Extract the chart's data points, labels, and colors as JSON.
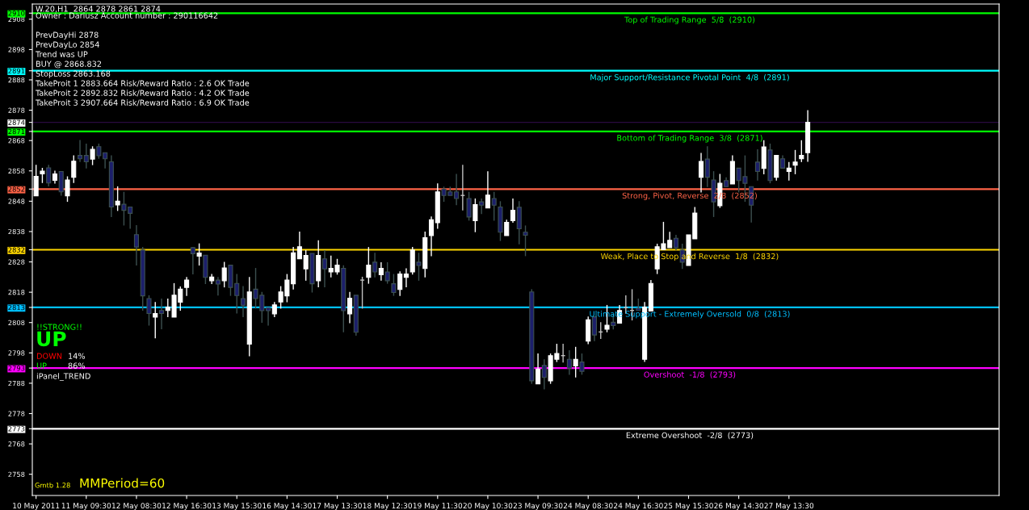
{
  "chart_data": {
    "type": "candlestick",
    "title": "W.20,H1  2864 2878 2861 2874",
    "categories": [
      "10 May 2011",
      null,
      null,
      null,
      null,
      null,
      null,
      null,
      "11 May 09:30",
      null,
      null,
      null,
      null,
      null,
      null,
      null,
      "12 May 08:30",
      null,
      null,
      null,
      null,
      null,
      null,
      null,
      "12 May 16:30",
      null,
      null,
      null,
      null,
      null,
      null,
      null,
      "13 May 15:30",
      null,
      null,
      null,
      null,
      null,
      null,
      null,
      "16 May 14:30",
      null,
      null,
      null,
      null,
      null,
      null,
      null,
      "17 May 13:30",
      null,
      null,
      null,
      null,
      null,
      null,
      null,
      "18 May 12:30",
      null,
      null,
      null,
      null,
      null,
      null,
      null,
      "19 May 11:30",
      null,
      null,
      null,
      null,
      null,
      null,
      null,
      "20 May 10:30",
      null,
      null,
      null,
      null,
      null,
      null,
      null,
      "23 May 09:30",
      null,
      null,
      null,
      null,
      null,
      null,
      null,
      "24 May 08:30",
      null,
      null,
      null,
      null,
      null,
      null,
      null,
      "24 May 16:30",
      null,
      null,
      null,
      null,
      null,
      null,
      null,
      "25 May 15:30",
      null,
      null,
      null,
      null,
      null,
      null,
      null,
      "26 May 14:30",
      null,
      null,
      null,
      null,
      null,
      null,
      null,
      "27 May 13:30",
      null,
      null,
      null
    ],
    "ohlc": [
      [
        2849.8,
        2860.0,
        2849.8,
        2856.2
      ],
      [
        2857.0,
        2859.0,
        2854.0,
        2857.9
      ],
      [
        2859.0,
        2860.0,
        2852.9,
        2854.0
      ],
      [
        2854.9,
        2858.1,
        2853.8,
        2857.0
      ],
      [
        2857.8,
        2857.8,
        2849.8,
        2851.1
      ],
      [
        2849.8,
        2856.2,
        2847.8,
        2855.0
      ],
      [
        2855.9,
        2863.1,
        2854.0,
        2861.2
      ],
      [
        2863.1,
        2868.2,
        2860.9,
        2862.0
      ],
      [
        2863.1,
        2867.0,
        2858.8,
        2861.0
      ],
      [
        2861.9,
        2866.1,
        2859.9,
        2865.1
      ],
      [
        2866.0,
        2867.0,
        2862.0,
        2863.0
      ],
      [
        2864.0,
        2864.0,
        2858.8,
        2862.0
      ],
      [
        2861.0,
        2863.1,
        2842.8,
        2846.1
      ],
      [
        2846.8,
        2852.9,
        2844.8,
        2848.0
      ],
      [
        2847.0,
        2851.1,
        2840.0,
        2845.0
      ],
      [
        2846.1,
        2846.1,
        2838.9,
        2844.0
      ],
      [
        2837.0,
        2840.1,
        2826.8,
        2832.9
      ],
      [
        2831.9,
        2832.9,
        2811.9,
        2816.8
      ],
      [
        2815.9,
        2817.0,
        2807.0,
        2811.0
      ],
      [
        2809.8,
        2814.8,
        2802.8,
        2811.0
      ],
      [
        2812.0,
        2815.9,
        2805.8,
        2811.0
      ],
      [
        2812.0,
        2815.9,
        2809.8,
        2813.1
      ],
      [
        2809.8,
        2821.0,
        2809.8,
        2817.0
      ],
      [
        2814.7,
        2819.9,
        2811.9,
        2819.0
      ],
      [
        2819.6,
        2823.0,
        2816.8,
        2822.0
      ],
      [
        2832.7,
        2832.9,
        2823.9,
        2830.7
      ],
      [
        2829.9,
        2834.1,
        2826.8,
        2830.9
      ],
      [
        2830.2,
        2830.2,
        2820.7,
        2822.9
      ],
      [
        2821.8,
        2824.0,
        2820.7,
        2823.0
      ],
      [
        2822.0,
        2823.0,
        2816.9,
        2820.7
      ],
      [
        2821.8,
        2828.0,
        2819.6,
        2826.0
      ],
      [
        2826.9,
        2826.9,
        2816.8,
        2819.6
      ],
      [
        2820.9,
        2824.0,
        2811.0,
        2816.9
      ],
      [
        2815.9,
        2820.0,
        2809.8,
        2813.7
      ],
      [
        2800.9,
        2823.0,
        2796.9,
        2818.1
      ],
      [
        2819.0,
        2826.0,
        2812.6,
        2815.9
      ],
      [
        2817.0,
        2818.1,
        2807.9,
        2811.9
      ],
      [
        2812.9,
        2812.9,
        2807.0,
        2811.9
      ],
      [
        2810.9,
        2814.8,
        2809.8,
        2813.8
      ],
      [
        2814.8,
        2820.0,
        2812.6,
        2818.1
      ],
      [
        2816.8,
        2824.0,
        2814.7,
        2822.0
      ],
      [
        2820.8,
        2832.9,
        2818.9,
        2831.0
      ],
      [
        2829.0,
        2838.0,
        2829.0,
        2833.0
      ],
      [
        2825.7,
        2831.9,
        2821.8,
        2830.1
      ],
      [
        2830.8,
        2830.8,
        2817.9,
        2820.8
      ],
      [
        2821.8,
        2835.1,
        2819.6,
        2830.1
      ],
      [
        2829.0,
        2831.9,
        2819.6,
        2825.7
      ],
      [
        2824.7,
        2830.1,
        2822.9,
        2825.9
      ],
      [
        2824.7,
        2829.0,
        2823.8,
        2826.9
      ],
      [
        2825.9,
        2826.9,
        2804.8,
        2811.9
      ],
      [
        2810.9,
        2818.1,
        2807.8,
        2816.0
      ],
      [
        2817.0,
        2817.0,
        2803.7,
        2804.8
      ],
      [
        2822.0,
        2823.1,
        2812.6,
        2822.0
      ],
      [
        2822.9,
        2832.9,
        2820.8,
        2826.9
      ],
      [
        2827.9,
        2831.0,
        2822.9,
        2824.7
      ],
      [
        2823.8,
        2827.9,
        2821.8,
        2825.9
      ],
      [
        2824.7,
        2827.9,
        2820.8,
        2821.8
      ],
      [
        2820.8,
        2824.0,
        2816.8,
        2817.9
      ],
      [
        2818.9,
        2824.9,
        2816.8,
        2824.0
      ],
      [
        2822.9,
        2825.9,
        2819.6,
        2824.0
      ],
      [
        2824.7,
        2832.9,
        2823.8,
        2831.9
      ],
      [
        2827.9,
        2831.0,
        2821.8,
        2826.8
      ],
      [
        2825.8,
        2838.0,
        2822.9,
        2836.0
      ],
      [
        2836.7,
        2843.0,
        2829.9,
        2841.9
      ],
      [
        2840.9,
        2853.9,
        2838.9,
        2851.1
      ],
      [
        2852.0,
        2852.8,
        2847.8,
        2849.9
      ],
      [
        2851.1,
        2852.8,
        2849.9,
        2849.9
      ],
      [
        2851.1,
        2857.0,
        2846.7,
        2848.9
      ],
      [
        2849.9,
        2860.0,
        2845.0,
        2849.9
      ],
      [
        2848.9,
        2851.1,
        2841.6,
        2842.8
      ],
      [
        2841.6,
        2848.9,
        2837.8,
        2846.9
      ],
      [
        2847.8,
        2848.9,
        2843.8,
        2846.7
      ],
      [
        2845.8,
        2857.9,
        2845.8,
        2850.0
      ],
      [
        2848.9,
        2851.1,
        2841.6,
        2846.7
      ],
      [
        2846.1,
        2848.0,
        2834.9,
        2837.8
      ],
      [
        2836.7,
        2841.9,
        2836.7,
        2841.0
      ],
      [
        2841.6,
        2848.9,
        2840.9,
        2845.0
      ],
      [
        2846.0,
        2848.0,
        2833.8,
        2838.9
      ],
      [
        2837.8,
        2840.0,
        2829.9,
        2836.8
      ],
      [
        2818.1,
        2819.0,
        2787.8,
        2788.8
      ],
      [
        2787.8,
        2797.8,
        2787.8,
        2792.7
      ],
      [
        2793.9,
        2795.9,
        2786.0,
        2789.9
      ],
      [
        2788.8,
        2797.8,
        2787.8,
        2797.1
      ],
      [
        2795.9,
        2801.0,
        2795.0,
        2797.8
      ],
      [
        2797.1,
        2801.0,
        2794.8,
        2797.1
      ],
      [
        2795.9,
        2798.9,
        2790.8,
        2793.0
      ],
      [
        2793.7,
        2800.0,
        2789.9,
        2795.9
      ],
      [
        2795.0,
        2797.8,
        2790.8,
        2791.9
      ],
      [
        2801.9,
        2810.0,
        2800.9,
        2808.9
      ],
      [
        2809.9,
        2809.9,
        2801.9,
        2803.9
      ],
      [
        2804.9,
        2808.1,
        2802.6,
        2804.9
      ],
      [
        2805.8,
        2813.8,
        2804.8,
        2807.1
      ],
      [
        2808.1,
        2810.9,
        2805.7,
        2807.0
      ],
      [
        2807.8,
        2813.8,
        2807.8,
        2812.0
      ],
      [
        2812.9,
        2817.0,
        2810.9,
        2812.9
      ],
      [
        2812.0,
        2819.0,
        2808.7,
        2812.0
      ],
      [
        2812.7,
        2815.9,
        2812.0,
        2812.0
      ],
      [
        2795.9,
        2814.8,
        2795.0,
        2813.1
      ],
      [
        2811.8,
        2822.0,
        2811.8,
        2820.9
      ],
      [
        2825.7,
        2834.0,
        2824.0,
        2833.0
      ],
      [
        2832.0,
        2841.2,
        2832.0,
        2834.0
      ],
      [
        2832.7,
        2837.9,
        2832.7,
        2835.1
      ],
      [
        2835.8,
        2836.9,
        2831.9,
        2832.7
      ],
      [
        2831.9,
        2834.0,
        2825.7,
        2827.9
      ],
      [
        2826.8,
        2836.9,
        2826.8,
        2836.9
      ],
      [
        2835.6,
        2846.1,
        2835.6,
        2844.1
      ],
      [
        2855.9,
        2863.9,
        2850.9,
        2861.1
      ],
      [
        2861.9,
        2866.1,
        2852.7,
        2855.9
      ],
      [
        2855.0,
        2857.9,
        2842.8,
        2847.8
      ],
      [
        2846.5,
        2857.0,
        2845.8,
        2853.9
      ],
      [
        2854.8,
        2855.9,
        2852.8,
        2852.8
      ],
      [
        2853.7,
        2863.1,
        2853.7,
        2861.1
      ],
      [
        2858.9,
        2858.9,
        2850.9,
        2854.8
      ],
      [
        2856.1,
        2863.1,
        2847.8,
        2853.9
      ],
      [
        2852.8,
        2852.8,
        2841.0,
        2846.7
      ],
      [
        2860.9,
        2865.1,
        2854.8,
        2857.8
      ],
      [
        2858.8,
        2868.1,
        2856.9,
        2865.9
      ],
      [
        2864.9,
        2867.0,
        2853.9,
        2854.8
      ],
      [
        2855.9,
        2863.1,
        2854.8,
        2863.1
      ],
      [
        2862.0,
        2863.1,
        2858.9,
        2858.9
      ],
      [
        2857.8,
        2860.9,
        2854.8,
        2858.9
      ],
      [
        2859.9,
        2864.9,
        2856.9,
        2860.9
      ],
      [
        2862.0,
        2868.1,
        2860.9,
        2863.1
      ],
      [
        2864,
        2878,
        2861,
        2874
      ]
    ],
    "colors": [
      "#ffffff",
      "#ffffff",
      "#1c1f6b",
      "#ffffff",
      "#1c1f6b",
      "#ffffff",
      "#ffffff",
      "#1c1f6b",
      "#1c1f6b",
      "#ffffff",
      "#1c1f6b",
      "#1c1f6b",
      "#1c1f6b",
      "#ffffff",
      "#1c1f6b",
      "#1c1f6b",
      "#1c1f6b",
      "#1c1f6b",
      "#1c1f6b",
      "#ffffff",
      "#1c1f6b",
      "#ffffff",
      "#ffffff",
      "#ffffff",
      "#ffffff",
      "#1c1f6b",
      "#ffffff",
      "#1c1f6b",
      "#ffffff",
      "#1c1f6b",
      "#ffffff",
      "#1c1f6b",
      "#1c1f6b",
      "#1c1f6b",
      "#ffffff",
      "#1c1f6b",
      "#1c1f6b",
      "#1c1f6b",
      "#ffffff",
      "#ffffff",
      "#ffffff",
      "#ffffff",
      "#ffffff",
      "#ffffff",
      "#1c1f6b",
      "#ffffff",
      "#1c1f6b",
      "#ffffff",
      "#ffffff",
      "#1c1f6b",
      "#ffffff",
      "#1c1f6b",
      "#c0c0c0",
      "#ffffff",
      "#1c1f6b",
      "#ffffff",
      "#1c1f6b",
      "#1c1f6b",
      "#ffffff",
      "#ffffff",
      "#ffffff",
      "#1c1f6b",
      "#ffffff",
      "#ffffff",
      "#ffffff",
      "#1c1f6b",
      "#1c1f6b",
      "#1c1f6b",
      "#c0c0c0",
      "#1c1f6b",
      "#ffffff",
      "#1c1f6b",
      "#ffffff",
      "#1c1f6b",
      "#1c1f6b",
      "#ffffff",
      "#ffffff",
      "#1c1f6b",
      "#1c1f6b",
      "#1c1f6b",
      "#ffffff",
      "#1c1f6b",
      "#ffffff",
      "#ffffff",
      "#c0c0c0",
      "#1c1f6b",
      "#ffffff",
      "#1c1f6b",
      "#ffffff",
      "#1c1f6b",
      "#c0c0c0",
      "#ffffff",
      "#1c1f6b",
      "#ffffff",
      "#c0c0c0",
      "#c0c0c0",
      "#1c1f6b",
      "#ffffff",
      "#ffffff",
      "#ffffff",
      "#ffffff",
      "#ffffff",
      "#1c1f6b",
      "#1c1f6b",
      "#ffffff",
      "#ffffff",
      "#ffffff",
      "#1c1f6b",
      "#1c1f6b",
      "#ffffff",
      "#1c1f6b",
      "#ffffff",
      "#1c1f6b",
      "#1c1f6b",
      "#1c1f6b",
      "#1c1f6b",
      "#ffffff",
      "#1c1f6b",
      "#ffffff",
      "#1c1f6b",
      "#ffffff",
      "#ffffff",
      "#ffffff",
      "#ffffff"
    ],
    "ylim": [
      2751,
      2913
    ],
    "yticks": [
      2758,
      2768,
      2773,
      2778,
      2788,
      2793,
      2798,
      2808,
      2813,
      2818,
      2828,
      2832,
      2838,
      2848,
      2852,
      2858,
      2868,
      2871,
      2874,
      2878,
      2888,
      2891,
      2898,
      2908,
      2910
    ],
    "grid": false,
    "legend": false,
    "ref_lines": [
      {
        "axis": "y",
        "value": 2910,
        "label": "Top of Trading Range  5/8  (2910)",
        "color": "#00ff00"
      },
      {
        "axis": "y",
        "value": 2891,
        "label": "Major Support/Resistance Pivotal Point  4/8  (2891)",
        "color": "#00ffff"
      },
      {
        "axis": "y",
        "value": 2874,
        "label": null,
        "color": "#2a0a40"
      },
      {
        "axis": "y",
        "value": 2871,
        "label": "Bottom of Trading Range  3/8  (2871)",
        "color": "#00ff00"
      },
      {
        "axis": "y",
        "value": 2852,
        "label": "Strong, Pivot, Reverse  2/8  (2852)",
        "color": "#ff6347"
      },
      {
        "axis": "y",
        "value": 2832,
        "label": "Weak, Place to Stop and Reverse  1/8  (2832)",
        "color": "#ffd700"
      },
      {
        "axis": "y",
        "value": 2813,
        "label": "Ultimate Support - Extremely Oversold  0/8  (2813)",
        "color": "#00bfff"
      },
      {
        "axis": "y",
        "value": 2793,
        "label": "Overshoot  -1/8  (2793)",
        "color": "#ff00ff"
      },
      {
        "axis": "y",
        "value": 2773,
        "label": "Extreme Overshoot  -2/8  (2773)",
        "color": "#ffffff"
      }
    ],
    "annotations": [
      "Owner : Dariusz Account number : 290116642",
      "PrevDayHi 2878",
      "PrevDayLo 2854",
      "Trend was UP",
      "BUY @ 2868.832",
      "StopLoss 2863.168",
      "TakeProit 1 2883.664 Risk/Reward Ratio : 2.6 OK Trade",
      "TakeProit 2 2892.832 Risk/Reward Ratio : 4.2 OK Trade",
      "TakeProit 3 2907.664 Risk/Reward Ratio : 6.9 OK Trade",
      "!!STRONG!!",
      "UP",
      "DOWN",
      "14%",
      "UP",
      "86%",
      "iPanel_TREND",
      "Gmtb 1.28",
      "MMPeriod=60"
    ]
  }
}
